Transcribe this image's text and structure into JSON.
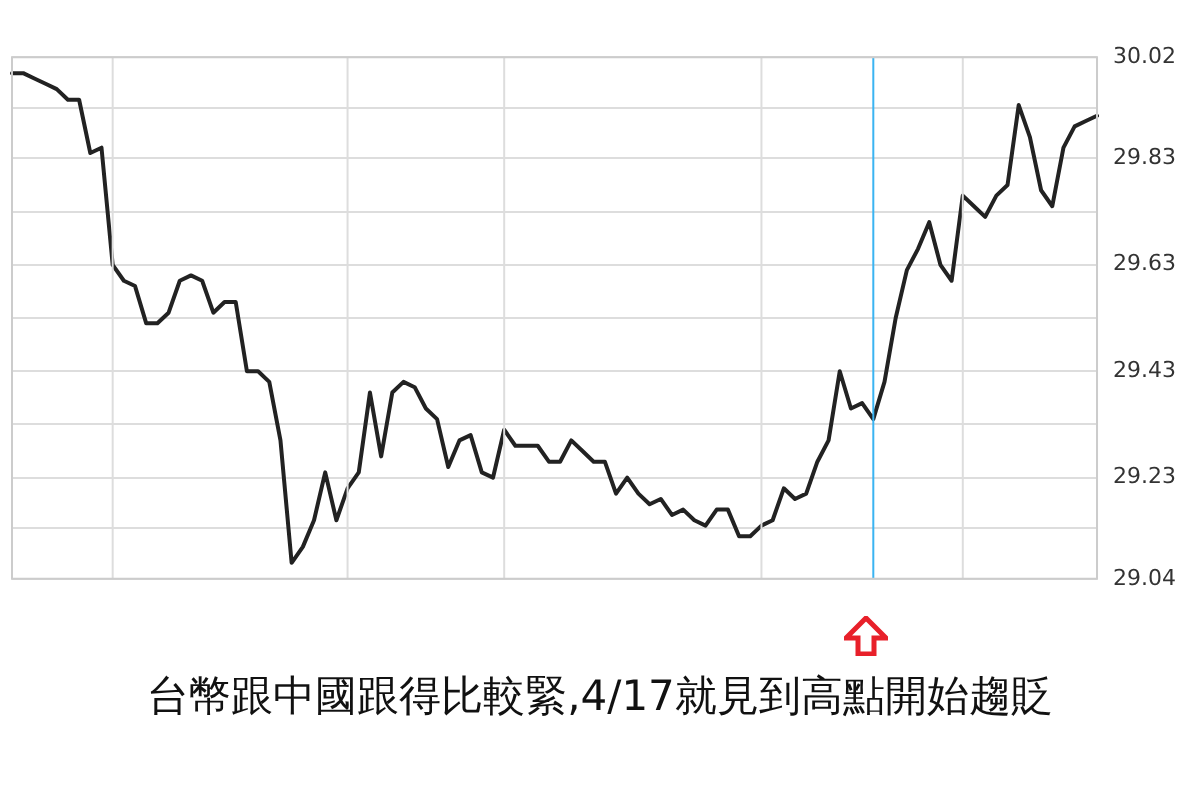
{
  "chart_data": {
    "type": "line",
    "categories": [
      null,
      null,
      null,
      null,
      null,
      null,
      null,
      null,
      null,
      null,
      null,
      null,
      null,
      null,
      null,
      null,
      null,
      null,
      null,
      null,
      null,
      null,
      null,
      null,
      null,
      null,
      null,
      null,
      null,
      null,
      null,
      null,
      null,
      null,
      null,
      null,
      null,
      null,
      null,
      null,
      null,
      null,
      null,
      null,
      null,
      null,
      null,
      null,
      null,
      null,
      null,
      null,
      null,
      null,
      null,
      null,
      null,
      null,
      null,
      null,
      null,
      null,
      null,
      null,
      null,
      null,
      null,
      null,
      null,
      null,
      null,
      null,
      null,
      null,
      null,
      null,
      null,
      null,
      null,
      null,
      null,
      null,
      null,
      null,
      null,
      null,
      null,
      null,
      null,
      null,
      null,
      null,
      null,
      null,
      null,
      null,
      null,
      null
    ],
    "series": [
      {
        "color": "#222222",
        "values": [
          29.99,
          29.99,
          29.98,
          29.97,
          29.96,
          29.94,
          29.94,
          29.84,
          29.85,
          29.63,
          29.6,
          29.59,
          29.52,
          29.52,
          29.54,
          29.6,
          29.61,
          29.6,
          29.54,
          29.56,
          29.56,
          29.43,
          29.43,
          29.41,
          29.3,
          29.07,
          29.1,
          29.15,
          29.24,
          29.15,
          29.21,
          29.24,
          29.39,
          29.27,
          29.39,
          29.41,
          29.4,
          29.36,
          29.34,
          29.25,
          29.3,
          29.31,
          29.24,
          29.23,
          29.32,
          29.29,
          29.29,
          29.29,
          29.26,
          29.26,
          29.3,
          29.28,
          29.26,
          29.26,
          29.2,
          29.23,
          29.2,
          29.18,
          29.19,
          29.16,
          29.17,
          29.15,
          29.14,
          29.17,
          29.17,
          29.12,
          29.12,
          29.14,
          29.15,
          29.21,
          29.19,
          29.2,
          29.26,
          29.3,
          29.43,
          29.36,
          29.37,
          29.34,
          29.41,
          29.53,
          29.62,
          29.66,
          29.71,
          29.63,
          29.6,
          29.76,
          29.74,
          29.72,
          29.76,
          29.78,
          29.93,
          29.87,
          29.77,
          29.74,
          29.85,
          29.89,
          29.9,
          29.91
        ]
      }
    ],
    "ylim": [
      29.04,
      30.02
    ],
    "yticks": [
      29.04,
      {
        "value": 29.135,
        "label": null
      },
      29.23,
      {
        "value": 29.33,
        "label": null
      },
      29.43,
      {
        "value": 29.53,
        "label": null
      },
      29.63,
      {
        "value": 29.73,
        "label": null
      },
      29.83,
      {
        "value": 29.925,
        "label": null
      },
      30.02
    ],
    "tick_labels": "y",
    "grid": true,
    "annotations": [
      "台幣跟中國跟得比較緊,4/17就見到高點開始趨貶"
    ]
  }
}
